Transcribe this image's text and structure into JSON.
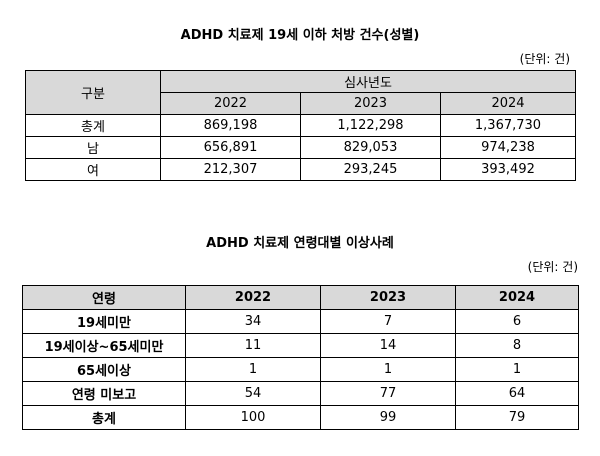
{
  "table1": {
    "title": "ADHD 치료제 19세 이하 처방 건수(성별)",
    "unit": "(단위: 건)",
    "header": {
      "corner": "구분",
      "group": "심사년도",
      "years": [
        "2022",
        "2023",
        "2024"
      ]
    },
    "rows": [
      [
        "총계",
        "869,198",
        "1,122,298",
        "1,367,730"
      ],
      [
        "남",
        "656,891",
        "829,053",
        "974,238"
      ],
      [
        "여",
        "212,307",
        "293,245",
        "393,492"
      ]
    ]
  },
  "table2": {
    "title": "ADHD 치료제 연령대별 이상사례",
    "unit": "(단위: 건)",
    "header": [
      "연령",
      "2022",
      "2023",
      "2024"
    ],
    "rows": [
      [
        "19세미만",
        "34",
        "7",
        "6"
      ],
      [
        "19세이상~65세미만",
        "11",
        "14",
        "8"
      ],
      [
        "65세이상",
        "1",
        "1",
        "1"
      ],
      [
        "연령 미보고",
        "54",
        "77",
        "64"
      ],
      [
        "총계",
        "100",
        "99",
        "79"
      ]
    ]
  }
}
